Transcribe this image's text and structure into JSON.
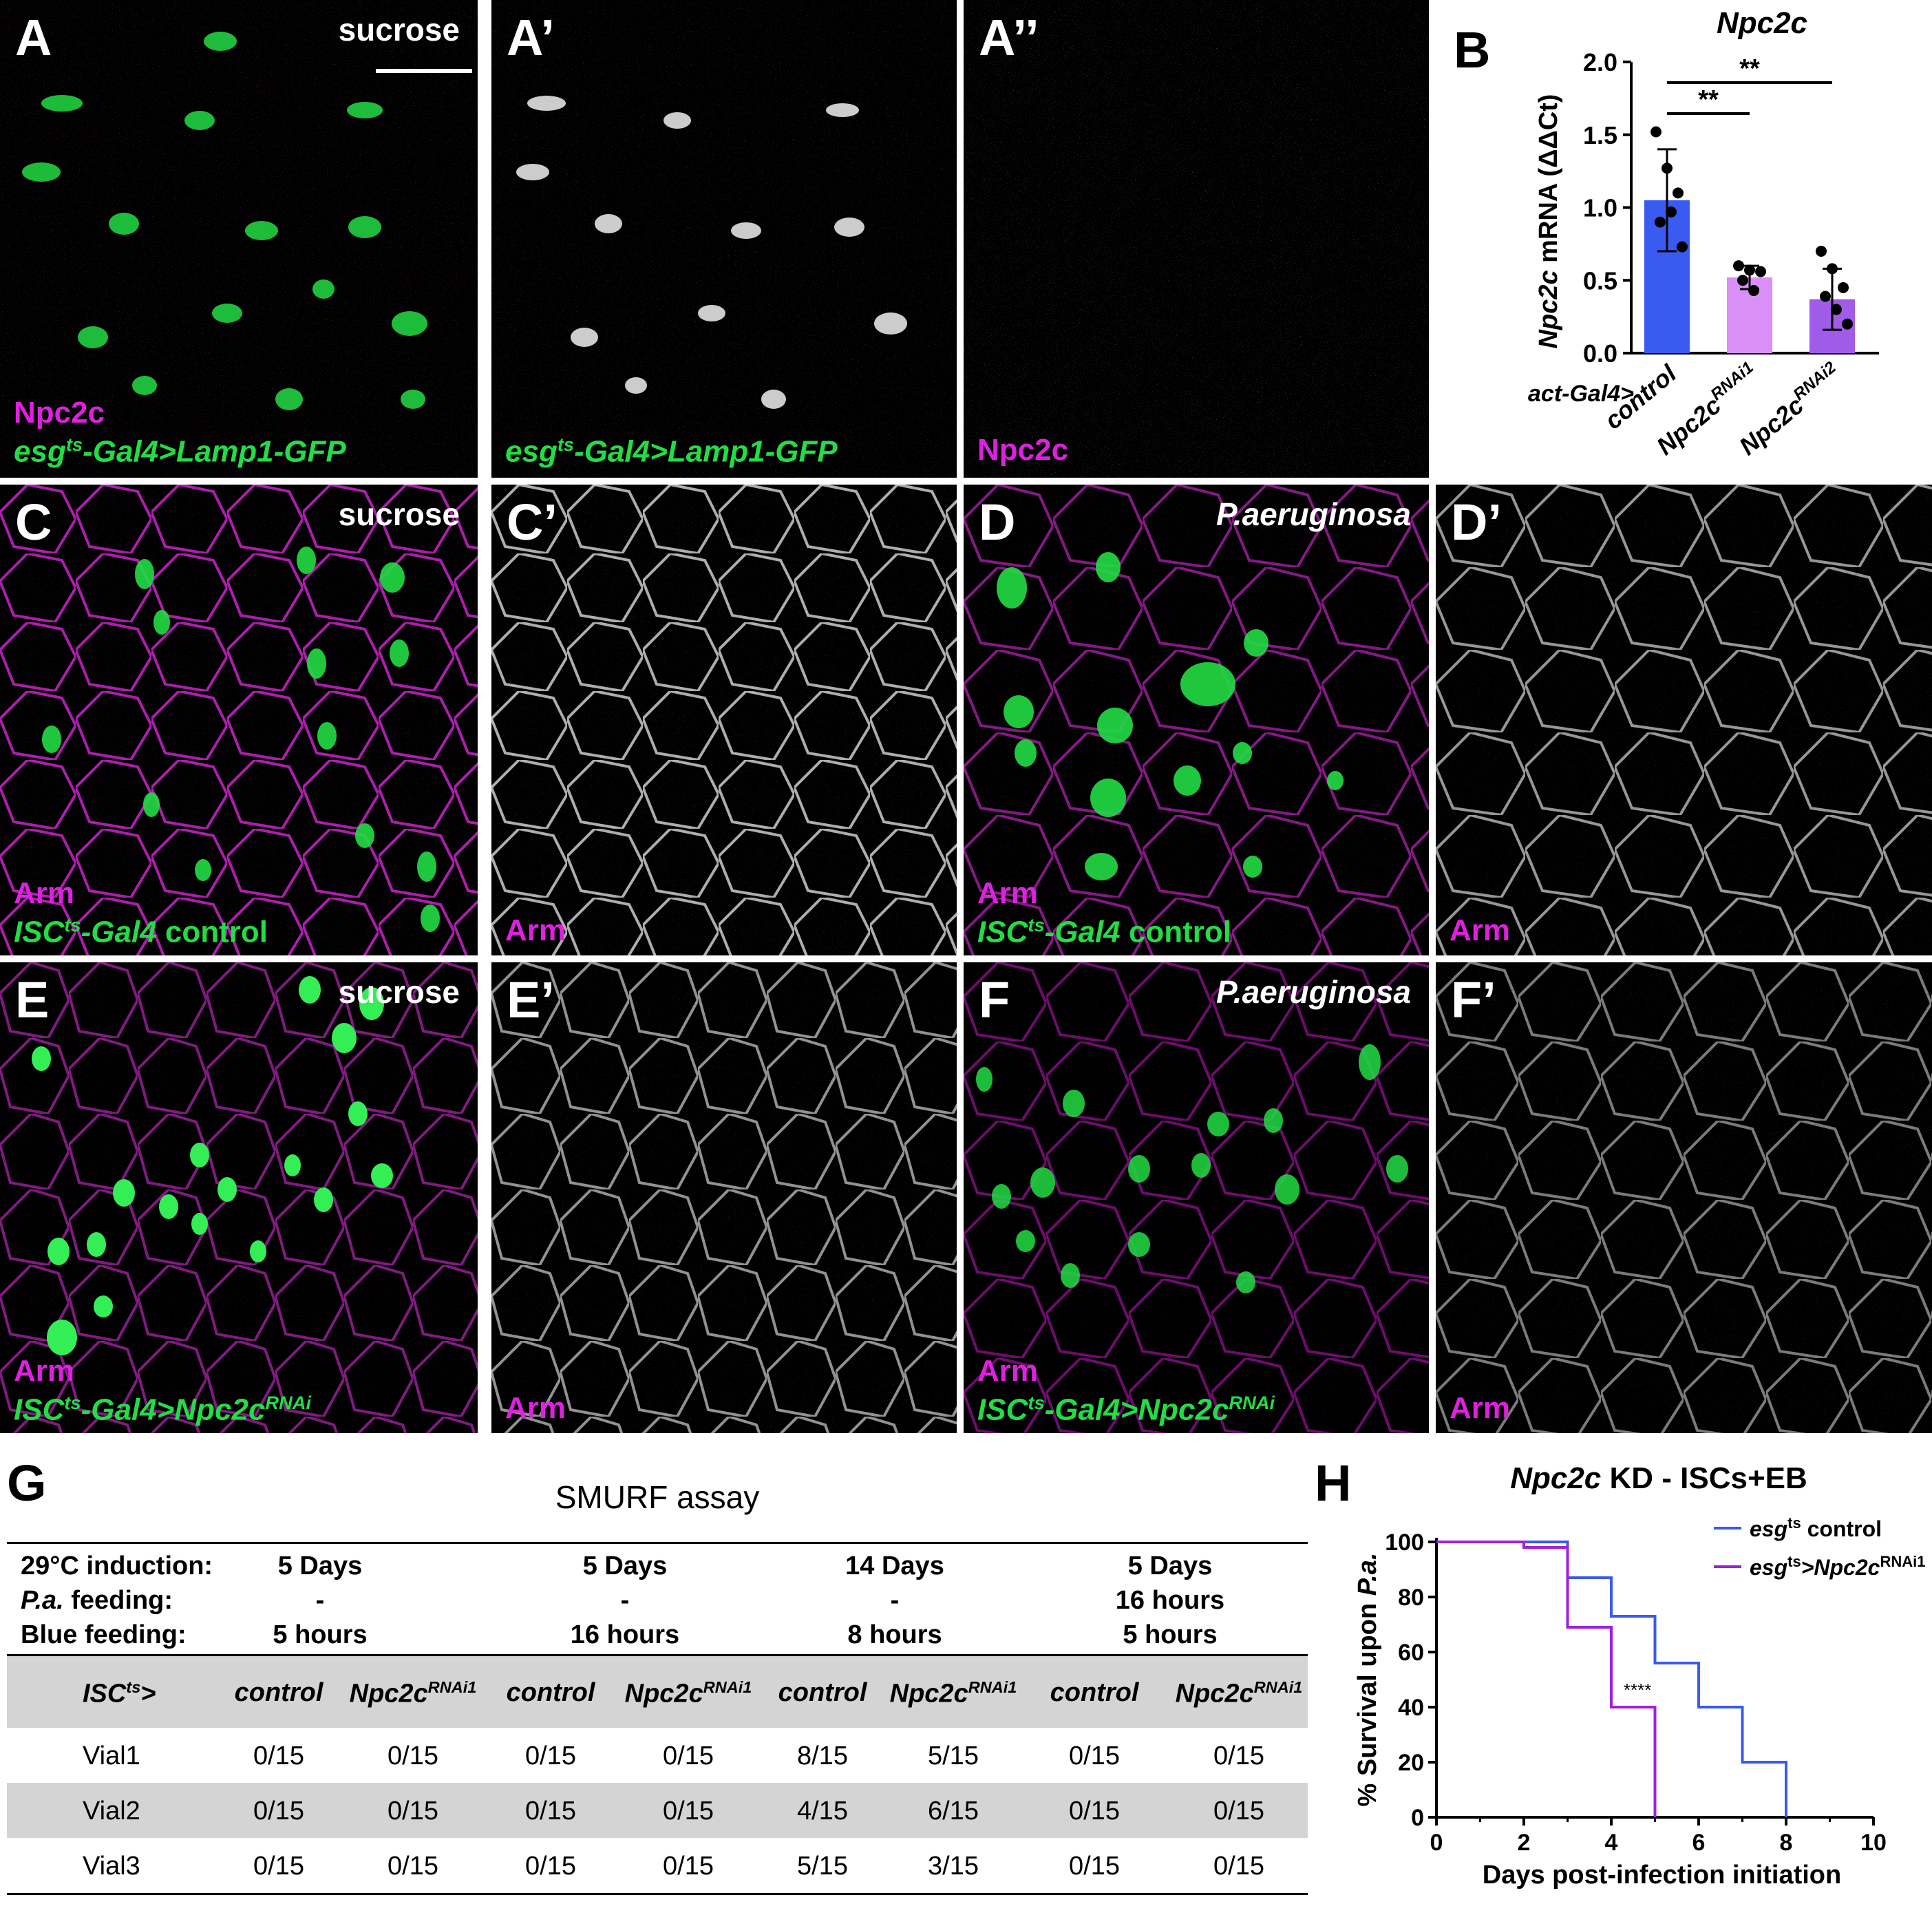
{
  "colors": {
    "magenta": "#e020e0",
    "green": "#22dd44",
    "blue": "#3a5bf0",
    "pink": "#d98ff5",
    "purple": "#a05ce8"
  },
  "panels": {
    "A": {
      "label": "A",
      "condition": "sucrose",
      "line1": "Npc2c",
      "line2_pre": "esg",
      "line2_sup": "ts",
      "line2_post": "-Gal4>Lamp1-GFP"
    },
    "A1": {
      "label": "A’",
      "line_pre": "esg",
      "line_sup": "ts",
      "line_post": "-Gal4>Lamp1-GFP"
    },
    "A2": {
      "label": "A’’",
      "line": "Npc2c"
    },
    "C": {
      "label": "C",
      "condition": "sucrose",
      "line1": "Arm",
      "line2_pre": "ISC",
      "line2_sup": "ts",
      "line2_post": "-Gal4",
      "line2_tail": " control"
    },
    "C1": {
      "label": "C’",
      "line": "Arm"
    },
    "D": {
      "label": "D",
      "condition": "P.aeruginosa",
      "line1": "Arm",
      "line2_pre": "ISC",
      "line2_sup": "ts",
      "line2_post": "-Gal4",
      "line2_tail": " control"
    },
    "D1": {
      "label": "D’",
      "line": "Arm"
    },
    "E": {
      "label": "E",
      "condition": "sucrose",
      "line1": "Arm",
      "line2_pre": "ISC",
      "line2_sup": "ts",
      "line2_post": "-Gal4>Npc2c",
      "line2_sup2": "RNAi"
    },
    "E1": {
      "label": "E’",
      "line": "Arm"
    },
    "F": {
      "label": "F",
      "condition": "P.aeruginosa",
      "line1": "Arm",
      "line2_pre": "ISC",
      "line2_sup": "ts",
      "line2_post": "-Gal4>Npc2c",
      "line2_sup2": "RNAi"
    },
    "F1": {
      "label": "F’",
      "line": "Arm"
    }
  },
  "panel_B": {
    "label": "B",
    "chart_data": {
      "type": "bar",
      "title": "Npc2c",
      "ylabel_italic": "Npc2c",
      "ylabel_rest": " mRNA (ΔΔCt)",
      "categories": [
        {
          "pre": "control",
          "sup": ""
        },
        {
          "pre": "Npc2c",
          "sup": "RNAi1"
        },
        {
          "pre": "Npc2c",
          "sup": "RNAi2"
        }
      ],
      "group_label": "act-Gal4>",
      "values": [
        1.05,
        0.52,
        0.37
      ],
      "errors": [
        0.35,
        0.08,
        0.21
      ],
      "points": [
        [
          1.52,
          1.27,
          1.1,
          0.9,
          0.97,
          0.73
        ],
        [
          0.6,
          0.57,
          0.56,
          0.5,
          0.43
        ],
        [
          0.7,
          0.58,
          0.45,
          0.39,
          0.3,
          0.2
        ]
      ],
      "bar_colors": [
        "#3a5bf0",
        "#d98ff5",
        "#a05ce8"
      ],
      "ylim": [
        0,
        2.0
      ],
      "yticks": [
        "0.0",
        "0.5",
        "1.0",
        "1.5",
        "2.0"
      ],
      "significance": [
        {
          "from": 0,
          "to": 1,
          "label": "**"
        },
        {
          "from": 0,
          "to": 2,
          "label": "**"
        }
      ]
    }
  },
  "panel_G": {
    "label": "G",
    "title": "SMURF assay",
    "conditions": [
      {
        "name": "29°C induction:",
        "values": [
          "5 Days",
          "5 Days",
          "14 Days",
          "5 Days"
        ]
      },
      {
        "name": "P.a. feeding:",
        "values": [
          "-",
          "-",
          "-",
          "16 hours"
        ]
      },
      {
        "name": "Blue feeding:",
        "values": [
          "5 hours",
          "16 hours",
          "8 hours",
          "5 hours"
        ]
      }
    ],
    "header_first_pre": "ISC",
    "header_first_sup": "ts",
    "header_first_post": ">",
    "genotype_control": "control",
    "genotype_rnai_pre": "Npc2c",
    "genotype_rnai_sup": "RNAi1",
    "rows": [
      {
        "name": "Vial1",
        "cells": [
          "0/15",
          "0/15",
          "0/15",
          "0/15",
          "8/15",
          "5/15",
          "0/15",
          "0/15"
        ]
      },
      {
        "name": "Vial2",
        "cells": [
          "0/15",
          "0/15",
          "0/15",
          "0/15",
          "4/15",
          "6/15",
          "0/15",
          "0/15"
        ]
      },
      {
        "name": "Vial3",
        "cells": [
          "0/15",
          "0/15",
          "0/15",
          "0/15",
          "5/15",
          "3/15",
          "0/15",
          "0/15"
        ]
      }
    ]
  },
  "panel_H": {
    "label": "H",
    "chart_data": {
      "type": "line",
      "title_italic": "Npc2c",
      "title_rest": " KD - ISCs+EB",
      "xlabel": "Days post-infection initiation",
      "ylabel_pre": "% Survival upon ",
      "ylabel_italic": "P.a.",
      "xlim": [
        0,
        10
      ],
      "ylim": [
        0,
        100
      ],
      "xticks": [
        "0",
        "2",
        "4",
        "6",
        "8",
        "10"
      ],
      "yticks": [
        "0",
        "20",
        "40",
        "60",
        "80",
        "100"
      ],
      "series": [
        {
          "name_pre": "esg",
          "name_sup": "ts",
          "name_post": " control",
          "name_sup2": "",
          "color": "#3a5bf0",
          "steps": [
            [
              0,
              100
            ],
            [
              2,
              100
            ],
            [
              3,
              100
            ],
            [
              3,
              87
            ],
            [
              4,
              87
            ],
            [
              4,
              73
            ],
            [
              5,
              73
            ],
            [
              5,
              56
            ],
            [
              6,
              56
            ],
            [
              6,
              40
            ],
            [
              7,
              40
            ],
            [
              7,
              20
            ],
            [
              8,
              20
            ],
            [
              8,
              0
            ]
          ]
        },
        {
          "name_pre": "esg",
          "name_sup": "ts",
          "name_post": ">Npc2c",
          "name_sup2": "RNAi1",
          "color": "#a020e0",
          "steps": [
            [
              0,
              100
            ],
            [
              2,
              100
            ],
            [
              2,
              98
            ],
            [
              3,
              98
            ],
            [
              3,
              69
            ],
            [
              4,
              69
            ],
            [
              4,
              40
            ],
            [
              5,
              40
            ],
            [
              5,
              0
            ]
          ]
        }
      ],
      "annotation": "****"
    }
  }
}
